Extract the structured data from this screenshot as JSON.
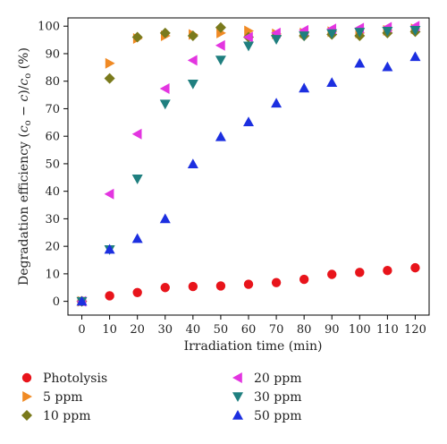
{
  "chart_data": {
    "type": "scatter",
    "title": "",
    "xlabel": "Irradiation time (min)",
    "ylabel_parts": [
      "Degradation efficiency (",
      "c",
      "o",
      " − ",
      "c",
      ")/",
      "c",
      "o",
      " (%)"
    ],
    "xlim": [
      -5,
      125
    ],
    "ylim": [
      -5,
      103
    ],
    "xticks": [
      0,
      10,
      20,
      30,
      40,
      50,
      60,
      70,
      80,
      90,
      100,
      110,
      120
    ],
    "yticks": [
      0,
      10,
      20,
      30,
      40,
      50,
      60,
      70,
      80,
      90,
      100
    ],
    "grid": false,
    "legend_position": "bottom",
    "series": [
      {
        "name": "Photolysis",
        "marker": "circle",
        "color": "#e8141b",
        "x": [
          0,
          10,
          20,
          30,
          40,
          50,
          60,
          70,
          80,
          90,
          100,
          110,
          120
        ],
        "y": [
          0,
          2.0,
          3.2,
          5.0,
          5.4,
          5.6,
          6.2,
          6.8,
          8.0,
          9.8,
          10.5,
          11.2,
          12.2
        ]
      },
      {
        "name": "5 ppm",
        "marker": "triangle-right",
        "color": "#f08a24",
        "x": [
          0,
          10,
          20,
          30,
          40,
          50,
          60,
          70,
          80,
          90,
          100,
          110,
          120
        ],
        "y": [
          0,
          86.5,
          95.5,
          96.5,
          97.0,
          97.5,
          98.3,
          97.2,
          97.5,
          98.0,
          97.5,
          98.5,
          99.0
        ]
      },
      {
        "name": "10 ppm",
        "marker": "diamond",
        "color": "#7a7a1c",
        "x": [
          0,
          10,
          20,
          30,
          40,
          50,
          60,
          70,
          80,
          90,
          100,
          110,
          120
        ],
        "y": [
          0,
          81.0,
          96.0,
          97.5,
          96.5,
          99.5,
          96.0,
          96.5,
          96.5,
          97.0,
          96.5,
          97.5,
          98.0
        ]
      },
      {
        "name": "20 ppm",
        "marker": "triangle-left",
        "color": "#e335e0",
        "x": [
          0,
          10,
          20,
          30,
          40,
          50,
          60,
          70,
          80,
          90,
          100,
          110,
          120
        ],
        "y": [
          0,
          39.0,
          60.8,
          77.3,
          87.6,
          93.0,
          96.0,
          97.5,
          98.5,
          99.0,
          99.3,
          99.6,
          100.0
        ]
      },
      {
        "name": "30 ppm",
        "marker": "triangle-down",
        "color": "#1f7f7f",
        "x": [
          0,
          10,
          20,
          30,
          40,
          50,
          60,
          70,
          80,
          90,
          100,
          110,
          120
        ],
        "y": [
          0,
          18.8,
          44.5,
          71.7,
          79.0,
          87.7,
          92.8,
          95.2,
          96.5,
          97.3,
          97.8,
          98.2,
          98.5
        ]
      },
      {
        "name": "50 ppm",
        "marker": "triangle-up",
        "color": "#1c2fe0",
        "x": [
          0,
          10,
          20,
          30,
          40,
          50,
          60,
          70,
          80,
          90,
          100,
          110,
          120
        ],
        "y": [
          0,
          18.9,
          22.8,
          30.0,
          49.9,
          59.8,
          65.2,
          72.0,
          77.5,
          79.5,
          86.5,
          85.2,
          88.9
        ]
      }
    ]
  }
}
